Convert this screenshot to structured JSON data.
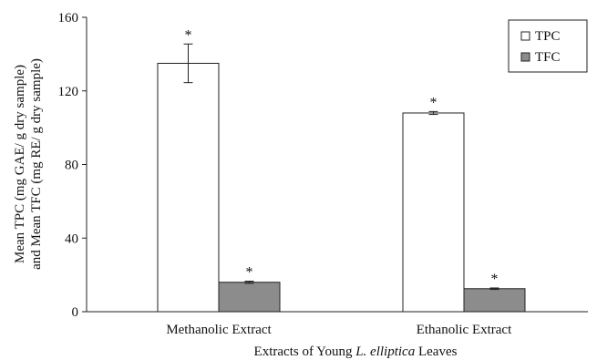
{
  "chart_data": {
    "type": "bar",
    "categories": [
      "Methanolic Extract",
      "Ethanolic Extract"
    ],
    "series": [
      {
        "name": "TPC",
        "values": [
          135,
          108
        ],
        "errors": [
          10.5,
          0.8
        ],
        "color": "#ffffff"
      },
      {
        "name": "TFC",
        "values": [
          16,
          12.5
        ],
        "errors": [
          0.6,
          0.4
        ],
        "color": "#8c8c8c"
      }
    ],
    "significance_marker": "*",
    "ylim": [
      0,
      160
    ],
    "yticks": [
      0,
      40,
      80,
      120,
      160
    ],
    "ylabel_line1": "Mean TPC (mg GAE/ g dry sample)",
    "ylabel_line2": "and Mean TFC (mg RE/ g dry sample)",
    "xlabel_prefix": "Extracts of Young ",
    "xlabel_italic": "L. elliptica",
    "xlabel_suffix": " Leaves",
    "legend_position": "top-right",
    "grid": false
  }
}
